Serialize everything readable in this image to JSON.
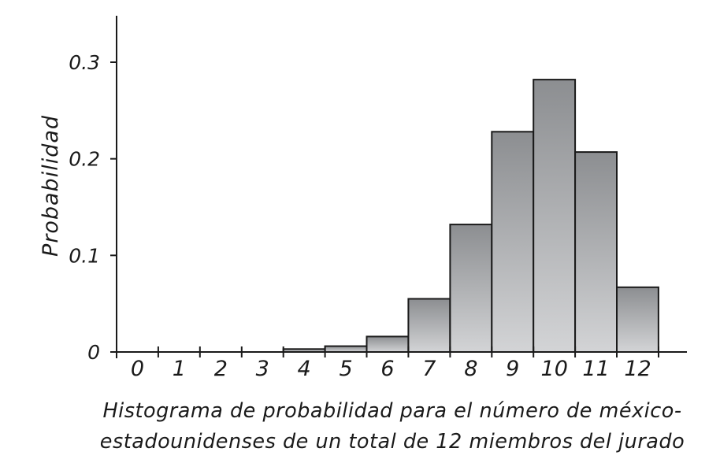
{
  "chart_data": {
    "type": "bar",
    "categories": [
      "0",
      "1",
      "2",
      "3",
      "4",
      "5",
      "6",
      "7",
      "8",
      "9",
      "10",
      "11",
      "12"
    ],
    "values": [
      0,
      0,
      0,
      0,
      0.003,
      0.006,
      0.016,
      0.055,
      0.132,
      0.228,
      0.282,
      0.207,
      0.067
    ],
    "ylabel": "Probabilidad",
    "xlabel": "",
    "ylim": [
      0,
      0.34
    ],
    "yticks": [
      {
        "value": 0,
        "label": "0"
      },
      {
        "value": 0.1,
        "label": "0.1"
      },
      {
        "value": 0.2,
        "label": "0.2"
      },
      {
        "value": 0.3,
        "label": "0.3"
      }
    ],
    "caption_line1": "Histograma de probabilidad para el número de méxico-",
    "caption_line2": "estadounidenses de un total de 12 miembros del jurado",
    "grid": false,
    "legend": "none"
  },
  "colors": {
    "bar_top": "#8c8e91",
    "bar_bottom": "#d3d4d6",
    "bar_stroke": "#1a1a1a",
    "axis": "#1a1a1a"
  }
}
